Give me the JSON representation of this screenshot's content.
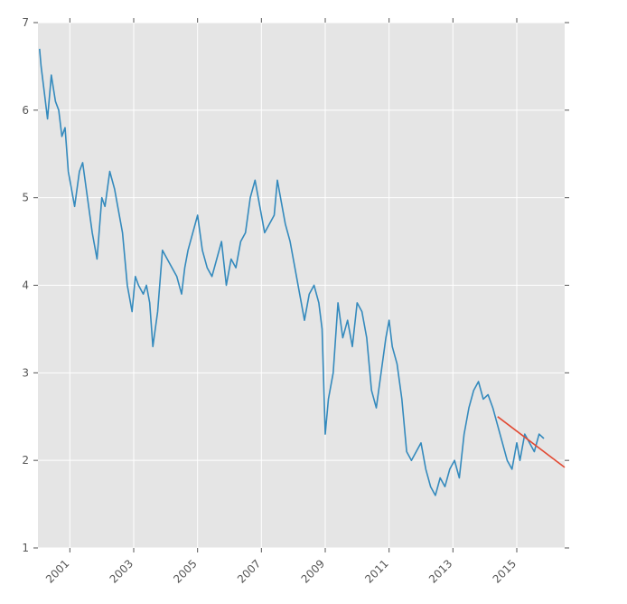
{
  "chart_data": {
    "type": "line",
    "title": "",
    "xlabel": "",
    "ylabel": "",
    "xlim": [
      2000.0,
      2016.5
    ],
    "ylim": [
      1,
      7
    ],
    "grid": true,
    "legend": "none",
    "x_tick_labels": [
      {
        "value": 2001,
        "label": "2001"
      },
      {
        "value": 2003,
        "label": "2003"
      },
      {
        "value": 2005,
        "label": "2005"
      },
      {
        "value": 2007,
        "label": "2007"
      },
      {
        "value": 2009,
        "label": "2009"
      },
      {
        "value": 2011,
        "label": "2011"
      },
      {
        "value": 2013,
        "label": "2013"
      },
      {
        "value": 2015,
        "label": "2015"
      }
    ],
    "y_tick_labels": [
      {
        "value": 1,
        "label": "1"
      },
      {
        "value": 2,
        "label": "2"
      },
      {
        "value": 3,
        "label": "3"
      },
      {
        "value": 4,
        "label": "4"
      },
      {
        "value": 5,
        "label": "5"
      },
      {
        "value": 6,
        "label": "6"
      },
      {
        "value": 7,
        "label": "7"
      }
    ],
    "series": [
      {
        "color": "#348abd",
        "x": [
          2000.05,
          2000.1,
          2000.2,
          2000.3,
          2000.42,
          2000.55,
          2000.65,
          2000.75,
          2000.85,
          2000.95,
          2001.05,
          2001.15,
          2001.3,
          2001.4,
          2001.55,
          2001.7,
          2001.85,
          2002.0,
          2002.1,
          2002.25,
          2002.4,
          2002.5,
          2002.65,
          2002.8,
          2002.95,
          2003.05,
          2003.15,
          2003.3,
          2003.4,
          2003.5,
          2003.6,
          2003.75,
          2003.9,
          2004.05,
          2004.2,
          2004.35,
          2004.5,
          2004.6,
          2004.7,
          2004.85,
          2005.0,
          2005.15,
          2005.3,
          2005.45,
          2005.6,
          2005.75,
          2005.9,
          2006.05,
          2006.2,
          2006.35,
          2006.5,
          2006.65,
          2006.8,
          2006.95,
          2007.1,
          2007.25,
          2007.4,
          2007.5,
          2007.6,
          2007.75,
          2007.9,
          2008.05,
          2008.2,
          2008.35,
          2008.5,
          2008.65,
          2008.8,
          2008.9,
          2009.0,
          2009.1,
          2009.25,
          2009.4,
          2009.55,
          2009.7,
          2009.85,
          2010.0,
          2010.15,
          2010.3,
          2010.45,
          2010.6,
          2010.75,
          2010.9,
          2011.0,
          2011.1,
          2011.25,
          2011.4,
          2011.55,
          2011.7,
          2011.85,
          2012.0,
          2012.15,
          2012.3,
          2012.45,
          2012.6,
          2012.75,
          2012.9,
          2013.05,
          2013.2,
          2013.35,
          2013.5,
          2013.65,
          2013.8,
          2013.95,
          2014.1,
          2014.25,
          2014.4,
          2014.55,
          2014.7,
          2014.85,
          2015.0,
          2015.1,
          2015.25,
          2015.4,
          2015.55,
          2015.7,
          2015.85
        ],
        "y": [
          6.7,
          6.5,
          6.2,
          5.9,
          6.4,
          6.1,
          6.0,
          5.7,
          5.8,
          5.3,
          5.1,
          4.9,
          5.3,
          5.4,
          5.0,
          4.6,
          4.3,
          5.0,
          4.9,
          5.3,
          5.1,
          4.9,
          4.6,
          4.0,
          3.7,
          4.1,
          4.0,
          3.9,
          4.0,
          3.8,
          3.3,
          3.7,
          4.4,
          4.3,
          4.2,
          4.1,
          3.9,
          4.2,
          4.4,
          4.6,
          4.8,
          4.4,
          4.2,
          4.1,
          4.3,
          4.5,
          4.0,
          4.3,
          4.2,
          4.5,
          4.6,
          5.0,
          5.2,
          4.9,
          4.6,
          4.7,
          4.8,
          5.2,
          5.0,
          4.7,
          4.5,
          4.2,
          3.9,
          3.6,
          3.9,
          4.0,
          3.8,
          3.5,
          2.3,
          2.7,
          3.0,
          3.8,
          3.4,
          3.6,
          3.3,
          3.8,
          3.7,
          3.4,
          2.8,
          2.6,
          3.0,
          3.4,
          3.6,
          3.3,
          3.1,
          2.7,
          2.1,
          2.0,
          2.1,
          2.2,
          1.9,
          1.7,
          1.6,
          1.8,
          1.7,
          1.9,
          2.0,
          1.8,
          2.3,
          2.6,
          2.8,
          2.9,
          2.7,
          2.75,
          2.6,
          2.4,
          2.2,
          2.0,
          1.9,
          2.2,
          2.0,
          2.3,
          2.2,
          2.1,
          2.3,
          2.25
        ]
      },
      {
        "color": "#e24a33",
        "x": [
          2014.4,
          2016.5
        ],
        "y": [
          2.5,
          1.92
        ]
      }
    ]
  }
}
